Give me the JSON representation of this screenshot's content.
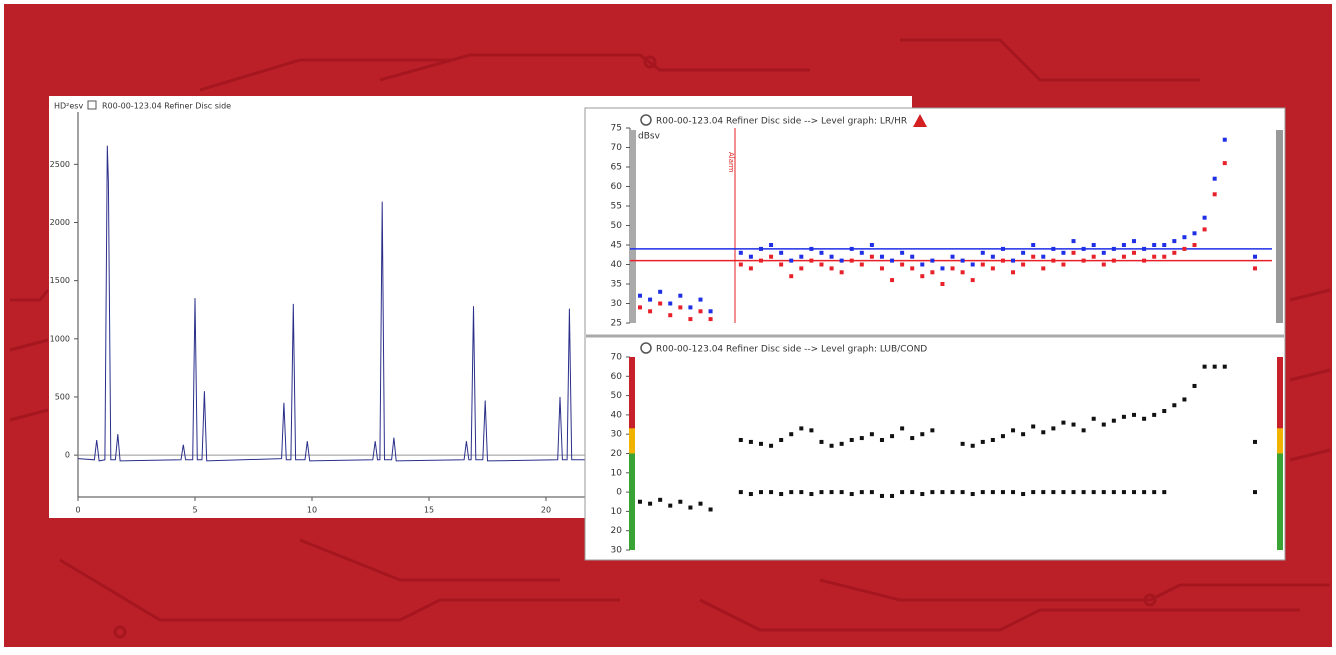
{
  "panel_label": "HD²esv",
  "chart_data": [
    {
      "type": "line",
      "title": "R00-00-123.04 Refiner Disc side",
      "color": "#2a2f8a",
      "x": [
        0,
        0.7,
        0.8,
        0.9,
        1.15,
        1.25,
        1.3,
        1.4,
        1.6,
        1.7,
        1.8,
        4.4,
        4.5,
        4.6,
        4.9,
        5.0,
        5.1,
        5.3,
        5.4,
        5.5,
        8.7,
        8.8,
        8.9,
        9.1,
        9.2,
        9.3,
        9.7,
        9.8,
        9.9,
        12.6,
        12.7,
        12.8,
        12.9,
        13.0,
        13.1,
        13.4,
        13.5,
        13.6,
        16.5,
        16.6,
        16.7,
        16.8,
        16.9,
        17.0,
        17.3,
        17.4,
        17.5,
        20.5,
        20.6,
        20.7,
        20.9,
        21.0,
        21.1,
        22.5
      ],
      "values": [
        -30,
        -40,
        130,
        -50,
        -40,
        2660,
        2350,
        -40,
        -40,
        180,
        -50,
        -40,
        90,
        -40,
        -40,
        1350,
        -40,
        -40,
        550,
        -50,
        -30,
        450,
        -40,
        -40,
        1300,
        -40,
        -40,
        120,
        -50,
        -40,
        120,
        -40,
        -40,
        2180,
        -40,
        -40,
        150,
        -50,
        -40,
        120,
        -40,
        -40,
        1280,
        -40,
        -40,
        470,
        -50,
        -40,
        500,
        -40,
        -40,
        1260,
        -40,
        -40
      ],
      "xlim": [
        0,
        35
      ],
      "xticks": [
        0,
        5,
        10,
        15,
        20
      ],
      "ylim": [
        -360,
        2950
      ],
      "yticks": [
        0,
        500,
        1000,
        1500,
        2000,
        2500
      ]
    },
    {
      "type": "scatter",
      "title": "R00-00-123.04 Refiner Disc side --> Level graph: LR/HR",
      "y_label": "dBsv",
      "annotation": "Alarm",
      "series": [
        {
          "color": "#1f2fe6",
          "values": [
            32,
            31,
            33,
            30,
            32,
            29,
            31,
            28,
            null,
            null,
            43,
            42,
            44,
            45,
            43,
            41,
            42,
            44,
            43,
            42,
            41,
            44,
            43,
            45,
            42,
            41,
            43,
            42,
            40,
            41,
            39,
            42,
            41,
            40,
            43,
            42,
            44,
            41,
            43,
            45,
            42,
            44,
            43,
            46,
            44,
            45,
            43,
            44,
            45,
            46,
            44,
            45,
            45,
            46,
            47,
            48,
            52,
            62,
            72,
            null,
            null,
            42
          ]
        },
        {
          "color": "#e8202a",
          "values": [
            29,
            28,
            30,
            27,
            29,
            26,
            28,
            26,
            null,
            null,
            40,
            39,
            41,
            42,
            40,
            37,
            39,
            41,
            40,
            39,
            38,
            41,
            40,
            42,
            39,
            36,
            40,
            39,
            37,
            38,
            35,
            39,
            38,
            36,
            40,
            39,
            41,
            38,
            40,
            42,
            39,
            41,
            40,
            43,
            41,
            42,
            40,
            41,
            42,
            43,
            41,
            42,
            42,
            43,
            44,
            45,
            49,
            58,
            66,
            null,
            null,
            39
          ]
        }
      ],
      "hlines": [
        {
          "value": 44,
          "color": "#1f2fe6"
        },
        {
          "value": 41,
          "color": "#e8202a"
        }
      ],
      "ylim": [
        25,
        75
      ],
      "yticks": [
        25,
        30,
        35,
        40,
        45,
        50,
        55,
        60,
        65,
        70,
        75
      ]
    },
    {
      "type": "scatter",
      "title": "R00-00-123.04 Refiner Disc side --> Level graph: LUB/COND",
      "series": [
        {
          "color": "#111111",
          "values": [
            null,
            null,
            null,
            null,
            null,
            null,
            null,
            null,
            null,
            null,
            27,
            26,
            25,
            24,
            27,
            30,
            33,
            32,
            26,
            24,
            25,
            27,
            28,
            30,
            27,
            29,
            33,
            28,
            30,
            32,
            null,
            null,
            25,
            24,
            26,
            27,
            29,
            32,
            30,
            34,
            31,
            33,
            36,
            35,
            32,
            38,
            35,
            37,
            39,
            40,
            38,
            40,
            42,
            45,
            48,
            55,
            65,
            65,
            65,
            null,
            null,
            26
          ]
        },
        {
          "color": "#111111",
          "values": [
            -5,
            -6,
            -4,
            -7,
            -5,
            -8,
            -6,
            -9,
            null,
            null,
            0,
            -1,
            0,
            0,
            -1,
            0,
            0,
            -1,
            0,
            0,
            0,
            -1,
            0,
            0,
            -2,
            -2,
            0,
            0,
            -1,
            0,
            0,
            0,
            0,
            -1,
            0,
            0,
            0,
            0,
            -1,
            0,
            0,
            0,
            0,
            0,
            0,
            0,
            0,
            0,
            0,
            0,
            0,
            0,
            0,
            null,
            null,
            null,
            null,
            null,
            null,
            null,
            null,
            0
          ]
        }
      ],
      "bands": [
        {
          "from": 33,
          "to": 70,
          "color": "#c8202a"
        },
        {
          "from": 20,
          "to": 33,
          "color": "#f0b400"
        },
        {
          "from": -30,
          "to": 20,
          "color": "#3aa335"
        }
      ],
      "ylim": [
        -30,
        70
      ],
      "yticks": [
        70,
        60,
        50,
        40,
        30,
        20,
        10,
        0,
        {
          "value": -10,
          "label": "10"
        },
        {
          "value": -20,
          "label": "20"
        },
        {
          "value": -30,
          "label": "30"
        }
      ]
    }
  ]
}
